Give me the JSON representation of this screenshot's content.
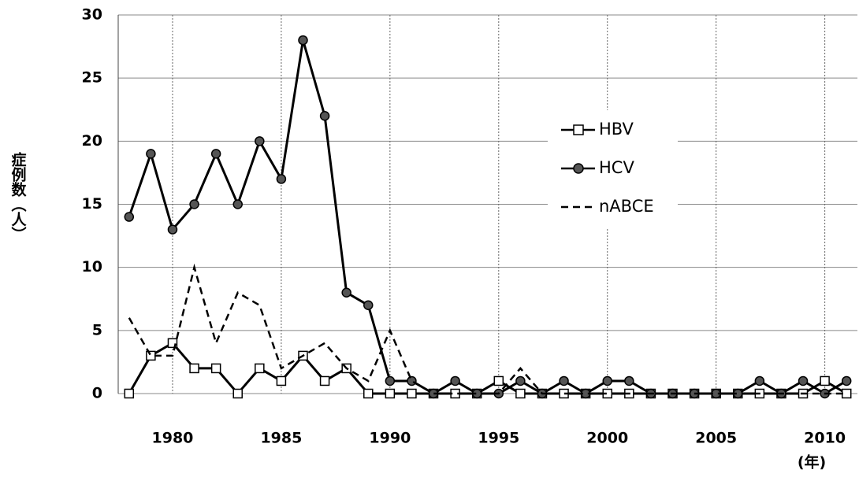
{
  "chart_data": {
    "type": "line",
    "y_label": "症例数（人）",
    "x_label": "(年)",
    "x": [
      1978,
      1979,
      1980,
      1981,
      1982,
      1983,
      1984,
      1985,
      1986,
      1987,
      1988,
      1989,
      1990,
      1991,
      1992,
      1993,
      1994,
      1995,
      1996,
      1997,
      1998,
      1999,
      2000,
      2001,
      2002,
      2003,
      2004,
      2005,
      2006,
      2007,
      2008,
      2009,
      2010,
      2011
    ],
    "xlim": [
      1977.5,
      2011.5
    ],
    "xticks": [
      1980,
      1985,
      1990,
      1995,
      2000,
      2005,
      2010
    ],
    "ylim": [
      0,
      30
    ],
    "yticks": [
      0,
      5,
      10,
      15,
      20,
      25,
      30
    ],
    "grid": true,
    "series": [
      {
        "name": "HBV",
        "color": "#000000",
        "marker": "square",
        "dash": false,
        "values": [
          0,
          3,
          4,
          2,
          2,
          0,
          2,
          1,
          3,
          1,
          2,
          0,
          0,
          0,
          0,
          0,
          0,
          1,
          0,
          0,
          0,
          0,
          0,
          0,
          0,
          0,
          0,
          0,
          0,
          0,
          0,
          0,
          1,
          0
        ]
      },
      {
        "name": "HCV",
        "color": "#000000",
        "marker": "circle",
        "dash": false,
        "values": [
          14,
          19,
          13,
          15,
          19,
          15,
          20,
          17,
          28,
          22,
          8,
          7,
          1,
          1,
          0,
          1,
          0,
          0,
          1,
          0,
          1,
          0,
          1,
          1,
          0,
          0,
          0,
          0,
          0,
          1,
          0,
          1,
          0,
          1
        ]
      },
      {
        "name": "nABCE",
        "color": "#000000",
        "marker": "none",
        "dash": true,
        "values": [
          6,
          3,
          3,
          10,
          4,
          8,
          7,
          2,
          3,
          4,
          2,
          1,
          5,
          1,
          0,
          0,
          0,
          0,
          2,
          0,
          0,
          0,
          0,
          0,
          0,
          0,
          0,
          0,
          0,
          0,
          0,
          0,
          0,
          0
        ]
      }
    ]
  }
}
